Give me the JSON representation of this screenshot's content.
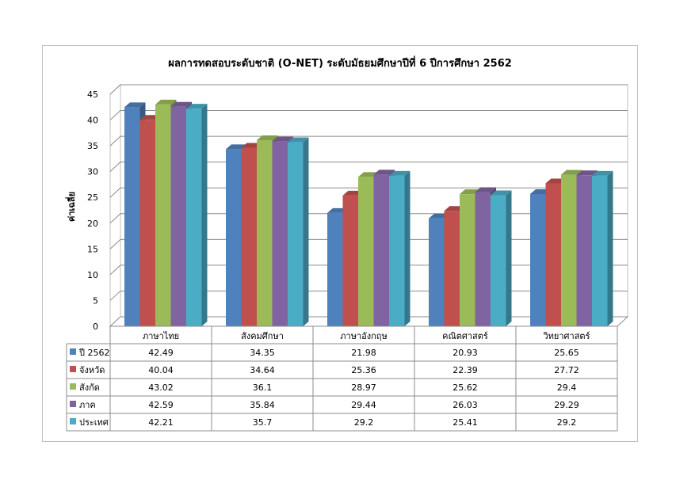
{
  "chart_data": {
    "type": "bar",
    "title": "ผลการทดสอบระดับชาติ (O-NET) ระดับมัธยมศึกษาปีที่ 6 ปีการศึกษา 2562",
    "ylabel": "ค่าเฉลี่ย",
    "xlabel": "",
    "ylim": [
      0,
      45
    ],
    "yticks": [
      0,
      5,
      10,
      15,
      20,
      25,
      30,
      35,
      40,
      45
    ],
    "categories": [
      "ภาษาไทย",
      "สังคมศึกษา",
      "ภาษาอังกฤษ",
      "คณิตศาสตร์",
      "วิทยาศาสตร์"
    ],
    "series": [
      {
        "name": "ปี 2562",
        "color": "#4f81bd",
        "values": [
          42.49,
          34.35,
          21.98,
          20.93,
          25.65
        ]
      },
      {
        "name": "จังหวัด",
        "color": "#c0504d",
        "values": [
          40.04,
          34.64,
          25.36,
          22.39,
          27.72
        ]
      },
      {
        "name": "สังกัด",
        "color": "#9bbb59",
        "values": [
          43.02,
          36.1,
          28.97,
          25.62,
          29.4
        ]
      },
      {
        "name": "ภาค",
        "color": "#8064a2",
        "values": [
          42.59,
          35.84,
          29.44,
          26.03,
          29.29
        ]
      },
      {
        "name": "ประเทศ",
        "color": "#4bacc6",
        "values": [
          42.21,
          35.7,
          29.2,
          25.41,
          29.2
        ]
      }
    ],
    "grid": true,
    "legend": "data-table",
    "style": "3d-clustered-column"
  }
}
